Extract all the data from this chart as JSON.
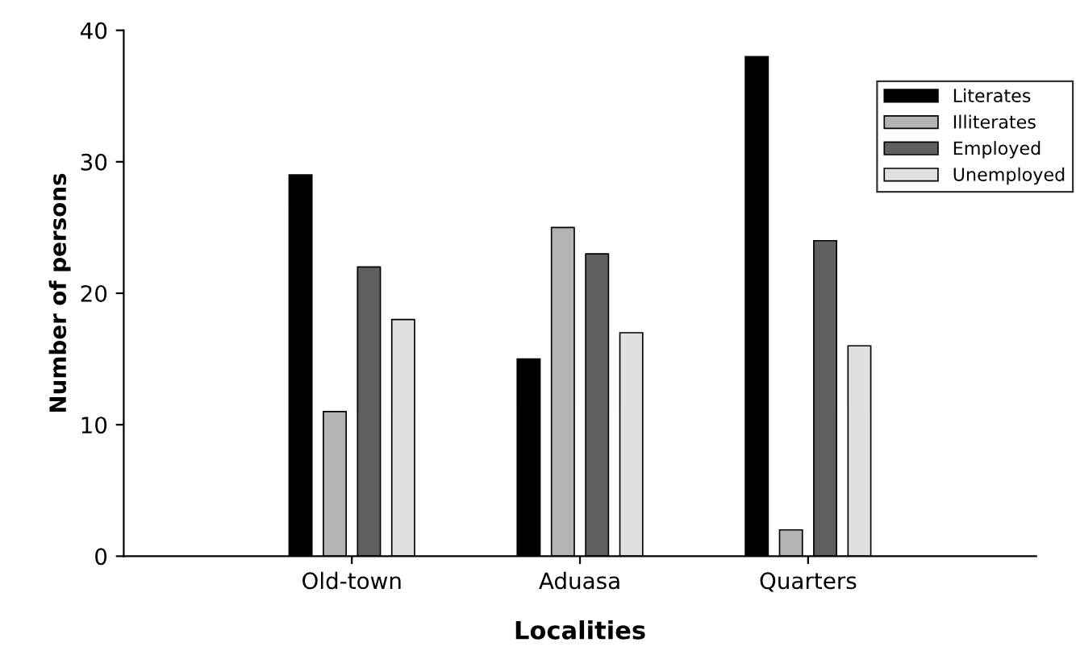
{
  "chart_data": {
    "type": "bar",
    "xlabel": "Localities",
    "ylabel": "Number of persons",
    "categories": [
      null,
      "Old-town",
      "Aduasa",
      "Quarters",
      null
    ],
    "series": [
      {
        "name": "Literates",
        "color": "#000000",
        "values": [
          null,
          29,
          15,
          38,
          null
        ]
      },
      {
        "name": "Illiterates",
        "color": "#b4b4b4",
        "values": [
          null,
          11,
          25,
          2,
          null
        ]
      },
      {
        "name": "Employed",
        "color": "#606060",
        "values": [
          null,
          22,
          23,
          24,
          null
        ]
      },
      {
        "name": "Unemployed",
        "color": "#e0e0e0",
        "values": [
          null,
          18,
          17,
          16,
          null
        ]
      }
    ],
    "ylim": [
      0,
      40
    ],
    "yticks": [
      0,
      10,
      20,
      30,
      40
    ],
    "grid": false,
    "legend": "top right"
  }
}
